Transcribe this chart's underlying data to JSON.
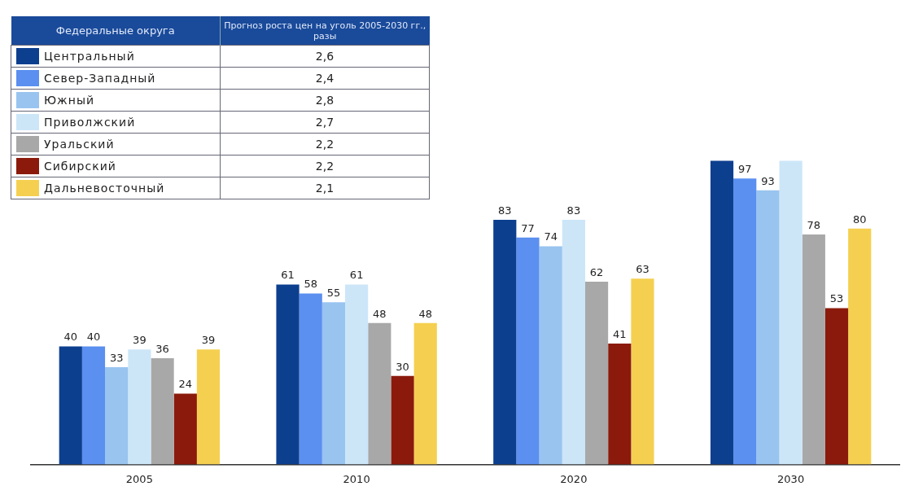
{
  "chart_data": [
    {
      "type": "other",
      "legend_title": "Федеральные округа",
      "title": "Прогноз роста цен на уголь 2005-2030 гг., разы",
      "categories": [
        "Центральный",
        "Север-Западный",
        "Южный",
        "Приволжский",
        "Уральский",
        "Сибирский",
        "Дальневосточный"
      ],
      "value_labels": [
        "2,6",
        "2,4",
        "2,8",
        "2,7",
        "2,2",
        "2,2",
        "2,1"
      ],
      "colors": [
        "#0d3f8f",
        "#5b8ff0",
        "#99c4f0",
        "#cce6f8",
        "#a8a8a8",
        "#8b1a0c",
        "#f5d050"
      ]
    },
    {
      "type": "bar",
      "categories": [
        "2005",
        "2010",
        "2020",
        "2030"
      ],
      "legend": false,
      "series": [
        {
          "color": "#0d3f8f",
          "values": [
            40,
            61,
            83,
            103
          ],
          "value_labels": [
            "40",
            "61",
            "83",
            null
          ]
        },
        {
          "color": "#5b8ff0",
          "values": [
            40,
            58,
            77,
            97
          ],
          "value_labels": [
            "40",
            "58",
            "77",
            "97"
          ]
        },
        {
          "color": "#99c4f0",
          "values": [
            33,
            55,
            74,
            93
          ],
          "value_labels": [
            "33",
            "55",
            "74",
            "93"
          ]
        },
        {
          "color": "#cce6f8",
          "values": [
            39,
            61,
            83,
            103
          ],
          "value_labels": [
            "39",
            "61",
            "83",
            null
          ]
        },
        {
          "color": "#a8a8a8",
          "values": [
            36,
            48,
            62,
            78
          ],
          "value_labels": [
            "36",
            "48",
            "62",
            "78"
          ]
        },
        {
          "color": "#8b1a0c",
          "values": [
            24,
            30,
            41,
            53
          ],
          "value_labels": [
            "24",
            "30",
            "41",
            "53"
          ]
        },
        {
          "color": "#f5d050",
          "values": [
            39,
            48,
            63,
            80
          ],
          "value_labels": [
            "39",
            "48",
            "63",
            "80"
          ]
        }
      ]
    }
  ]
}
